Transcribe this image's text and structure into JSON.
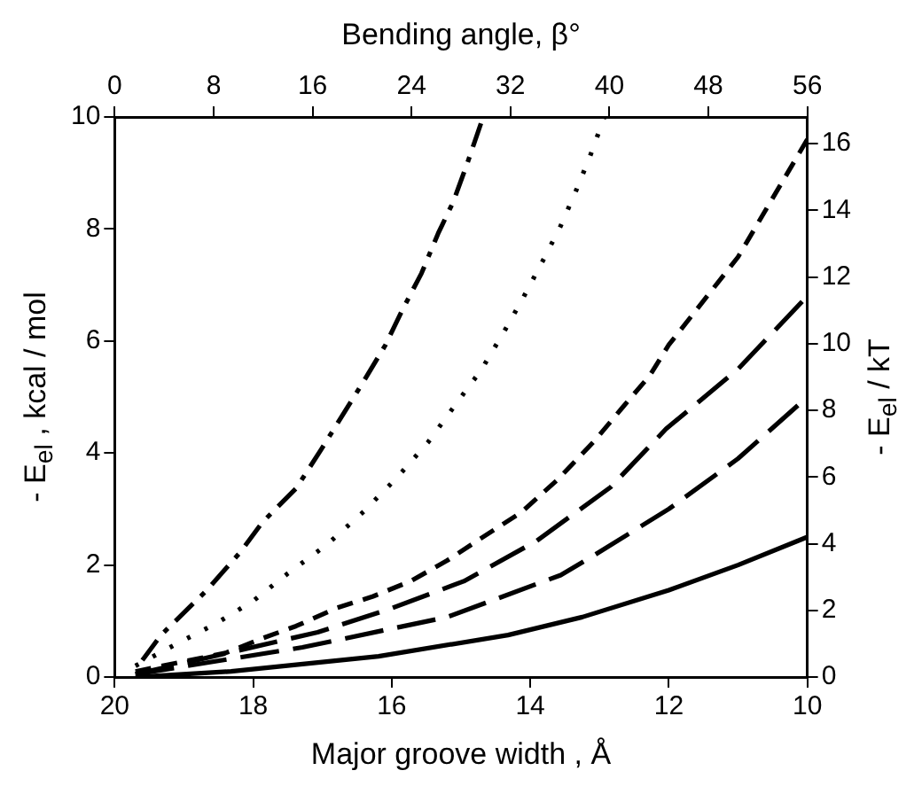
{
  "chart_data": {
    "type": "line",
    "x2label": "Bending angle, β°",
    "xlabel": "Major groove width , Å",
    "ylabel": "- E$_{el}$ , kcal / mol",
    "y2label": "- E$_{el}$ / kT",
    "xlim": [
      20,
      10
    ],
    "xticks": [
      20,
      18,
      16,
      14,
      12,
      10
    ],
    "x2lim": [
      0,
      56
    ],
    "x2ticks": [
      0,
      8,
      16,
      24,
      32,
      40,
      48,
      56
    ],
    "ylim": [
      0,
      10
    ],
    "yticks": [
      0,
      2,
      4,
      6,
      8,
      10
    ],
    "y2lim": [
      0,
      16.8
    ],
    "y2ticks": [
      0,
      2,
      4,
      6,
      8,
      10,
      12,
      14,
      16
    ],
    "grid": false,
    "legend": false,
    "marker": "none",
    "series": [
      {
        "color": "#000000",
        "line_style": "dashdot",
        "x": [
          19.6,
          19.33,
          18.67,
          18.18,
          17.87,
          17.38,
          17.02,
          16.4,
          16.09,
          15.84,
          15.57,
          15.33,
          15.11,
          14.91,
          14.68
        ],
        "values": [
          0.3,
          0.75,
          1.55,
          2.24,
          2.76,
          3.37,
          4.06,
          5.29,
          5.93,
          6.57,
          7.21,
          7.92,
          8.49,
          9.17,
          10
        ]
      },
      {
        "color": "#000000",
        "line_style": "dotted",
        "x": [
          19.7,
          19.11,
          18.53,
          18.0,
          17.51,
          16.93,
          16.4,
          15.91,
          15.47,
          15.07,
          14.71,
          14.4,
          14.12,
          13.82,
          13.57,
          13.35,
          13.14,
          12.93
        ],
        "values": [
          0.2,
          0.59,
          0.96,
          1.36,
          1.84,
          2.37,
          2.96,
          3.58,
          4.2,
          4.88,
          5.48,
          6.12,
          6.73,
          7.43,
          8.03,
          8.65,
          9.29,
          10
        ]
      },
      {
        "color": "#000000",
        "line_style": "dashed",
        "x": [
          19.7,
          18.4,
          17.87,
          17.38,
          16.8,
          16.27,
          15.73,
          15.2,
          14.67,
          14.13,
          13.6,
          13.07,
          12.67,
          12.27,
          12.0,
          11.0,
          10.0
        ],
        "values": [
          0.1,
          0.43,
          0.69,
          0.91,
          1.23,
          1.44,
          1.71,
          2.08,
          2.51,
          2.94,
          3.53,
          4.22,
          4.81,
          5.39,
          5.93,
          7.5,
          9.6
        ]
      },
      {
        "color": "#000000",
        "line_style": "longdash",
        "x": [
          19.7,
          17.07,
          16.04,
          14.96,
          13.91,
          12.84,
          12.04,
          11.0,
          10.0
        ],
        "values": [
          0.05,
          0.8,
          1.21,
          1.71,
          2.43,
          3.39,
          4.43,
          5.5,
          6.8
        ]
      },
      {
        "color": "#000000",
        "line_style": "longdash",
        "x": [
          19.7,
          17.29,
          15.2,
          13.56,
          13.07,
          12.0,
          11.0,
          10.0
        ],
        "values": [
          0.05,
          0.53,
          1.07,
          1.82,
          2.18,
          3.0,
          3.9,
          5.0
        ]
      },
      {
        "color": "#000000",
        "line_style": "solid",
        "x": [
          19.7,
          18.32,
          16.19,
          14.32,
          13.25,
          12.0,
          11.0,
          10.0
        ],
        "values": [
          0,
          0.1,
          0.37,
          0.75,
          1.07,
          1.55,
          2.0,
          2.5
        ]
      }
    ]
  }
}
